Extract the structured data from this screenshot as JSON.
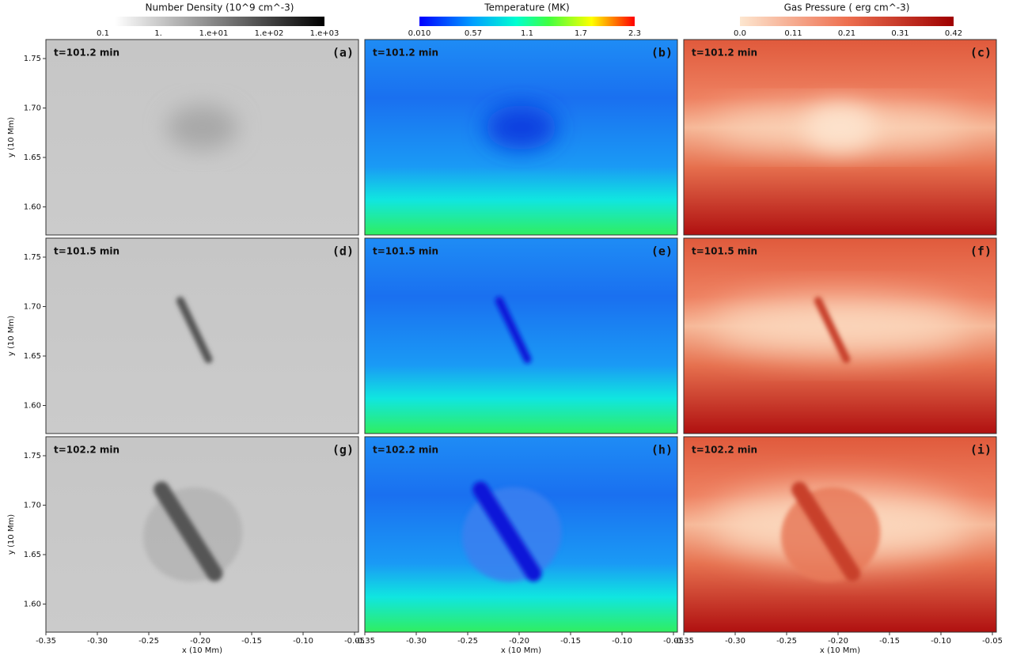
{
  "colorbars": [
    {
      "title": "Number Density  (10^9 cm^-3)",
      "ticks": [
        "0.1",
        "1.",
        "1.e+01",
        "1.e+02",
        "1.e+03"
      ]
    },
    {
      "title": "Temperature (MK)",
      "ticks": [
        "0.010",
        "0.57",
        "1.1",
        "1.7",
        "2.3"
      ]
    },
    {
      "title": "Gas Pressure ( erg cm^-3)",
      "ticks": [
        "0.0",
        "0.11",
        "0.21",
        "0.31",
        "0.42"
      ]
    }
  ],
  "panels": [
    {
      "label": "(a)",
      "time": "t=101.2 min"
    },
    {
      "label": "(b)",
      "time": "t=101.2 min"
    },
    {
      "label": "(c)",
      "time": "t=101.2 min"
    },
    {
      "label": "(d)",
      "time": "t=101.5 min"
    },
    {
      "label": "(e)",
      "time": "t=101.5 min"
    },
    {
      "label": "(f)",
      "time": "t=101.5 min"
    },
    {
      "label": "(g)",
      "time": "t=102.2 min"
    },
    {
      "label": "(h)",
      "time": "t=102.2 min"
    },
    {
      "label": "(i)",
      "time": "t=102.2 min"
    }
  ],
  "axes": {
    "y_label": "y (10 Mm)",
    "x_label": "x (10 Mm)",
    "y_ticks": [
      "1.75",
      "1.70",
      "1.65",
      "1.60"
    ],
    "x_ticks": [
      "-0.35",
      "-0.30",
      "-0.25",
      "-0.20",
      "-0.15",
      "-0.10",
      "-0.05"
    ]
  }
}
